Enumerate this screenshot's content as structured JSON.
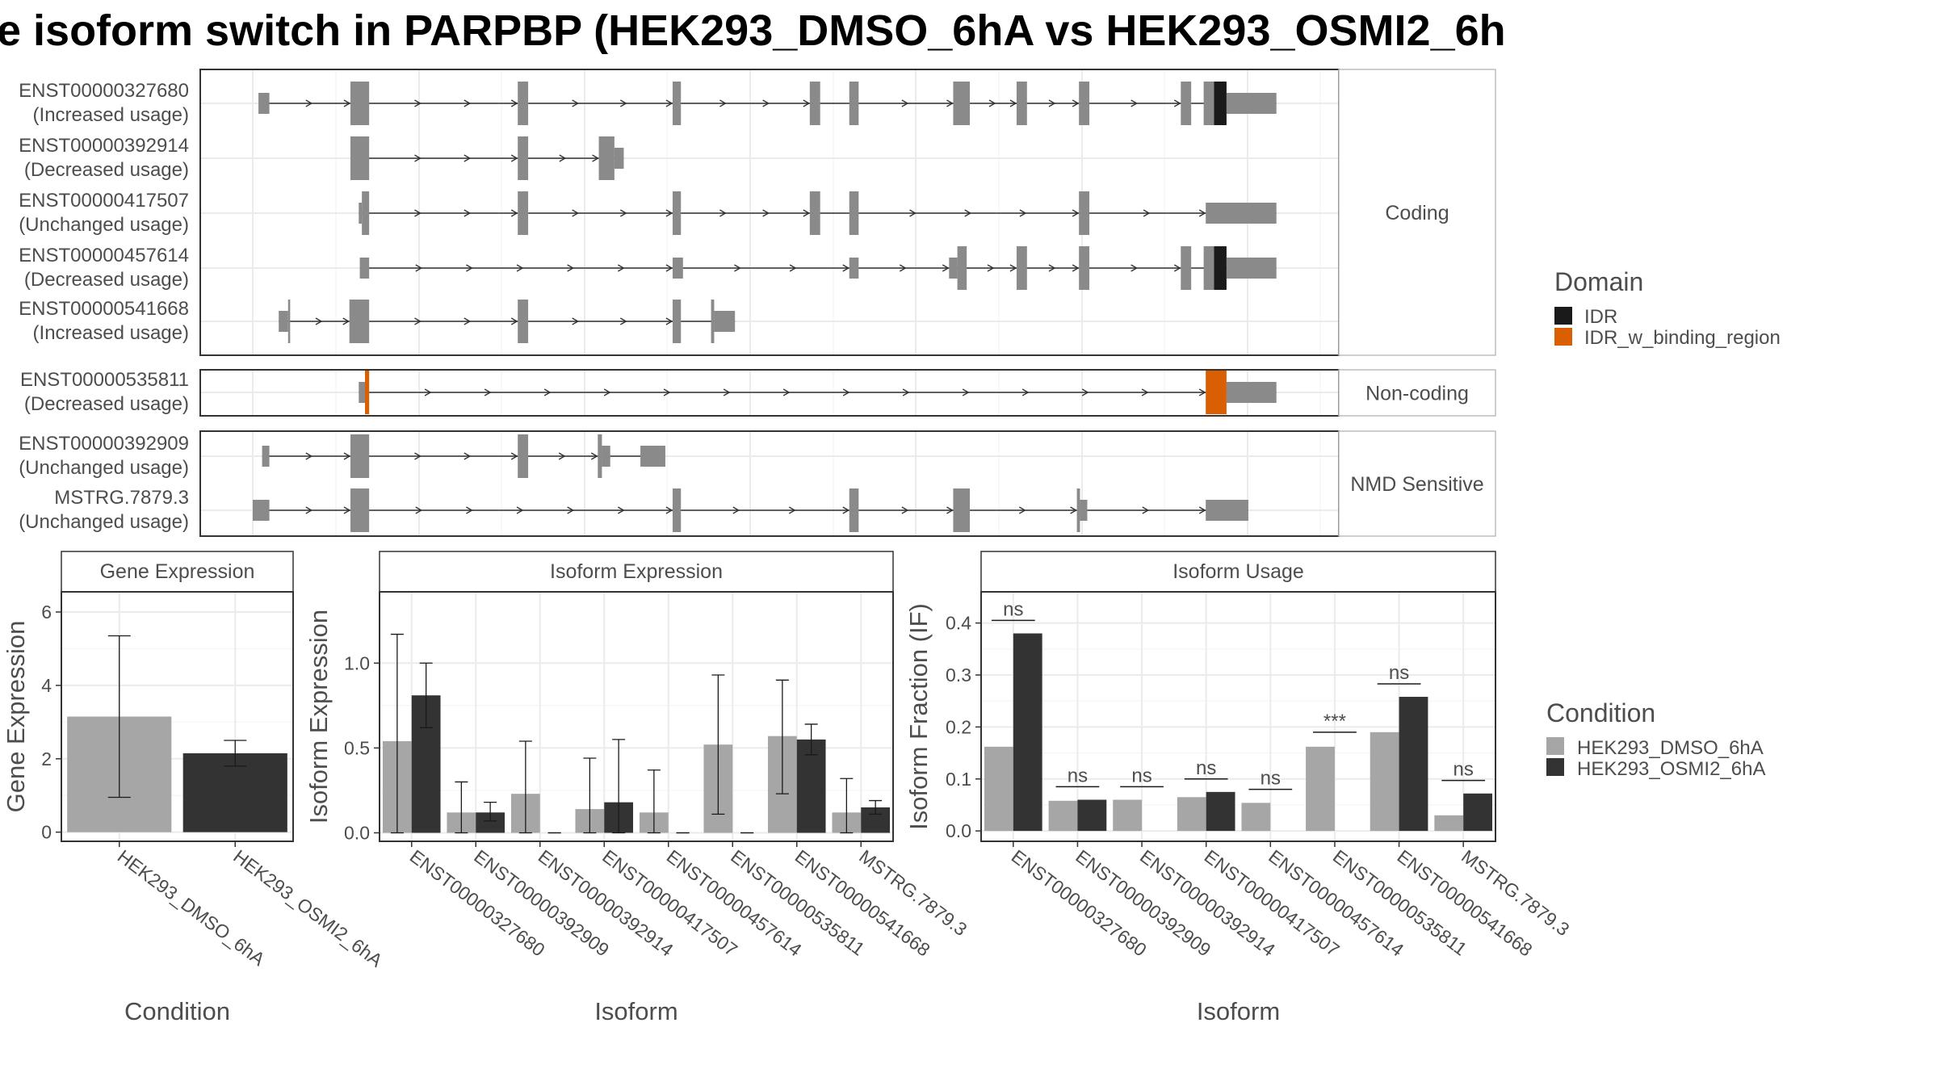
{
  "title": "e isoform switch in PARPBP (HEK293_DMSO_6hA vs HEK293_OSMI2_6h",
  "colors": {
    "exon": "#8a8a8a",
    "IDR": "#1a1a1a",
    "IDR_w_binding_region": "#d95f02",
    "HEK293_DMSO_6hA": "#a6a6a6",
    "HEK293_OSMI2_6hA": "#333333"
  },
  "chart_data": [
    {
      "type": "transcript-structure",
      "domain_legend": {
        "title": "Domain",
        "items": [
          "IDR",
          "IDR_w_binding_region"
        ]
      },
      "facets": [
        {
          "label": "Coding",
          "transcripts": [
            {
              "id": "ENST00000327680",
              "usage": "(Increased usage)",
              "exons": [
                [
                  0.55,
                  1.6,
                  "s"
                ],
                [
                  9.4,
                  11.2,
                  "b"
                ],
                [
                  25.5,
                  26.5,
                  "b"
                ],
                [
                  40.4,
                  41.2,
                  "b"
                ],
                [
                  53.6,
                  54.6,
                  "b"
                ],
                [
                  57.4,
                  58.3,
                  "b"
                ],
                [
                  67.4,
                  69,
                  "b"
                ],
                [
                  73.5,
                  74.5,
                  "b"
                ],
                [
                  79.5,
                  80.5,
                  "b"
                ],
                [
                  89.3,
                  90.3,
                  "b"
                ],
                [
                  91.5,
                  92.5,
                  "b"
                ],
                [
                  92.5,
                  93.7,
                  "IDR"
                ],
                [
                  93.7,
                  98.5,
                  "s"
                ]
              ]
            },
            {
              "id": "ENST00000392914",
              "usage": "(Decreased usage)",
              "exons": [
                [
                  9.4,
                  11.2,
                  "b"
                ],
                [
                  25.5,
                  26.5,
                  "b"
                ],
                [
                  33.3,
                  34.8,
                  "b"
                ],
                [
                  34.8,
                  35.7,
                  "s"
                ]
              ]
            },
            {
              "id": "ENST00000417507",
              "usage": "(Unchanged usage)",
              "exons": [
                [
                  10.2,
                  10.5,
                  "s"
                ],
                [
                  10.5,
                  11.2,
                  "b"
                ],
                [
                  25.5,
                  26.5,
                  "b"
                ],
                [
                  40.4,
                  41.2,
                  "b"
                ],
                [
                  53.6,
                  54.6,
                  "b"
                ],
                [
                  57.4,
                  58.3,
                  "b"
                ],
                [
                  79.5,
                  80.5,
                  "b"
                ],
                [
                  91.7,
                  98.5,
                  "s"
                ]
              ]
            },
            {
              "id": "ENST00000457614",
              "usage": "(Decreased usage)",
              "exons": [
                [
                  10.3,
                  11.2,
                  "s"
                ],
                [
                  40.4,
                  41.4,
                  "s"
                ],
                [
                  57.4,
                  58.3,
                  "s"
                ],
                [
                  67,
                  67.8,
                  "s"
                ],
                [
                  67.8,
                  68.7,
                  "b"
                ],
                [
                  73.5,
                  74.5,
                  "b"
                ],
                [
                  79.5,
                  80.5,
                  "b"
                ],
                [
                  89.3,
                  90.3,
                  "b"
                ],
                [
                  91.5,
                  92.5,
                  "b"
                ],
                [
                  92.5,
                  93.7,
                  "IDR"
                ],
                [
                  93.7,
                  98.5,
                  "s"
                ]
              ]
            },
            {
              "id": "ENST00000541668",
              "usage": "(Increased usage)",
              "exons": [
                [
                  2.5,
                  3.4,
                  "s"
                ],
                [
                  3.4,
                  3.6,
                  "b"
                ],
                [
                  9.3,
                  11.2,
                  "b"
                ],
                [
                  25.5,
                  26.5,
                  "b"
                ],
                [
                  40.4,
                  41.2,
                  "b"
                ],
                [
                  44.1,
                  44.4,
                  "b"
                ],
                [
                  44.4,
                  46.4,
                  "s"
                ]
              ]
            }
          ]
        },
        {
          "label": "Non-coding",
          "transcripts": [
            {
              "id": "ENST00000535811",
              "usage": "(Decreased usage)",
              "exons": [
                [
                  10.2,
                  10.8,
                  "s"
                ],
                [
                  10.8,
                  11.2,
                  "IDR_w_binding_region"
                ],
                [
                  91.7,
                  93.7,
                  "IDR_w_binding_region"
                ],
                [
                  93.7,
                  98.5,
                  "s"
                ]
              ]
            }
          ]
        },
        {
          "label": "NMD Sensitive",
          "transcripts": [
            {
              "id": "ENST00000392909",
              "usage": "(Unchanged usage)",
              "exons": [
                [
                  0.9,
                  1.6,
                  "s"
                ],
                [
                  9.4,
                  11.2,
                  "b"
                ],
                [
                  25.5,
                  26.5,
                  "b"
                ],
                [
                  33.2,
                  33.6,
                  "b"
                ],
                [
                  33.6,
                  34.4,
                  "s"
                ],
                [
                  37.3,
                  39.7,
                  "s"
                ]
              ]
            },
            {
              "id": "MSTRG.7879.3",
              "usage": "(Unchanged usage)",
              "exons": [
                [
                  0,
                  1.6,
                  "s"
                ],
                [
                  9.4,
                  11.2,
                  "b"
                ],
                [
                  40.4,
                  41.2,
                  "b"
                ],
                [
                  57.4,
                  58.3,
                  "b"
                ],
                [
                  67.4,
                  69,
                  "b"
                ],
                [
                  79.3,
                  79.6,
                  "b"
                ],
                [
                  79.6,
                  80.3,
                  "s"
                ],
                [
                  91.7,
                  95.8,
                  "s"
                ]
              ]
            }
          ]
        }
      ]
    },
    {
      "type": "bar",
      "title": "Gene Expression",
      "xlabel": "Condition",
      "ylabel": "Gene Expression",
      "categories": [
        "HEK293_DMSO_6hA",
        "HEK293_OSMI2_6hA"
      ],
      "values": [
        3.15,
        2.15
      ],
      "error_low": [
        0.95,
        1.8
      ],
      "error_high": [
        5.35,
        2.5
      ],
      "ylim": [
        -0.25,
        6.55
      ],
      "yticks": [
        0,
        2,
        4,
        6
      ]
    },
    {
      "type": "bar",
      "title": "Isoform Expression",
      "xlabel": "Isoform",
      "ylabel": "Isoform Expression",
      "categories": [
        "ENST00000327680",
        "ENST00000392909",
        "ENST00000392914",
        "ENST00000417507",
        "ENST00000457614",
        "ENST00000535811",
        "ENST00000541668",
        "MSTRG.7879.3"
      ],
      "ylim": [
        -0.05,
        1.42
      ],
      "yticks": [
        0.0,
        0.5,
        1.0
      ],
      "yticklabels": [
        "0.0",
        "0.5",
        "1.0"
      ],
      "series": [
        {
          "name": "HEK293_DMSO_6hA",
          "values": [
            0.54,
            0.12,
            0.23,
            0.14,
            0.12,
            0.52,
            0.57,
            0.12
          ],
          "err_low": [
            0,
            0,
            0,
            0,
            0,
            0.11,
            0.23,
            0
          ],
          "err_high": [
            1.17,
            0.3,
            0.54,
            0.44,
            0.37,
            0.93,
            0.9,
            0.32
          ]
        },
        {
          "name": "HEK293_OSMI2_6hA",
          "values": [
            0.81,
            0.12,
            0,
            0.18,
            0,
            0,
            0.55,
            0.15
          ],
          "err_low": [
            0.62,
            0.07,
            0,
            0,
            0,
            0,
            0.46,
            0.11
          ],
          "err_high": [
            1.0,
            0.18,
            0,
            0.55,
            0,
            0,
            0.64,
            0.19
          ]
        }
      ]
    },
    {
      "type": "bar",
      "title": "Isoform Usage",
      "xlabel": "Isoform",
      "ylabel": "Isoform Fraction (IF)",
      "categories": [
        "ENST00000327680",
        "ENST00000392909",
        "ENST00000392914",
        "ENST00000417507",
        "ENST00000457614",
        "ENST00000535811",
        "ENST00000541668",
        "MSTRG.7879.3"
      ],
      "ylim": [
        -0.02,
        0.46
      ],
      "yticks": [
        0.0,
        0.1,
        0.2,
        0.3,
        0.4
      ],
      "yticklabels": [
        "0.0",
        "0.1",
        "0.2",
        "0.3",
        "0.4"
      ],
      "series": [
        {
          "name": "HEK293_DMSO_6hA",
          "values": [
            0.162,
            0.058,
            0.06,
            0.065,
            0.054,
            0.162,
            0.19,
            0.03
          ]
        },
        {
          "name": "HEK293_OSMI2_6hA",
          "values": [
            0.38,
            0.06,
            0,
            0.075,
            0,
            0,
            0.258,
            0.072
          ]
        }
      ],
      "significance": [
        "ns",
        "ns",
        "ns",
        "ns",
        "ns",
        "***",
        "ns",
        "ns"
      ],
      "significance_y": [
        0.405,
        0.085,
        0.085,
        0.1,
        0.08,
        0.19,
        0.283,
        0.097
      ]
    }
  ],
  "condition_legend": {
    "title": "Condition",
    "items": [
      "HEK293_DMSO_6hA",
      "HEK293_OSMI2_6hA"
    ]
  }
}
